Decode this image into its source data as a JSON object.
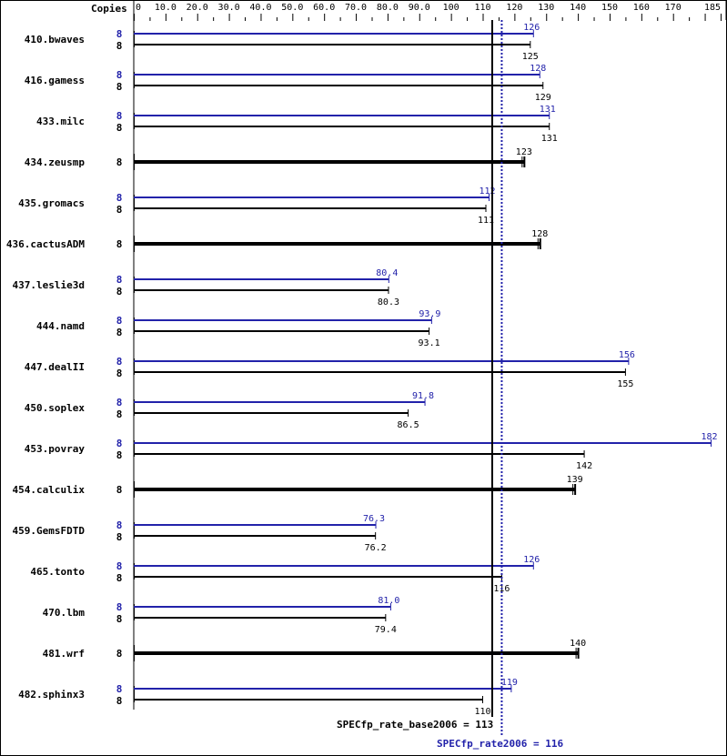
{
  "chart_data": {
    "type": "bar",
    "orientation": "horizontal",
    "xaxis_label": "Copies",
    "xlim": [
      0,
      185
    ],
    "tick_labels": [
      "0",
      "10.0",
      "20.0",
      "30.0",
      "40.0",
      "50.0",
      "60.0",
      "70.0",
      "80.0",
      "90.0",
      "100",
      "110",
      "120",
      "130",
      "140",
      "150",
      "160",
      "170",
      "185"
    ],
    "tick_values": [
      0,
      10,
      20,
      30,
      40,
      50,
      60,
      70,
      80,
      90,
      100,
      110,
      120,
      130,
      140,
      150,
      160,
      170,
      185
    ],
    "colors": {
      "peak": "#2222aa",
      "base": "#000000"
    },
    "rows": [
      {
        "name": "410.bwaves",
        "peak_copies": "8",
        "base_copies": "8",
        "peak": 126,
        "peak_label": "126",
        "base": 125,
        "base_label": "125"
      },
      {
        "name": "416.gamess",
        "peak_copies": "8",
        "base_copies": "8",
        "peak": 128,
        "peak_label": "128",
        "base": 129,
        "base_label": "129"
      },
      {
        "name": "433.milc",
        "peak_copies": "8",
        "base_copies": "8",
        "peak": 131,
        "peak_label": "131",
        "base": 131,
        "base_label": "131"
      },
      {
        "name": "434.zeusmp",
        "base_copies": "8",
        "base": 123,
        "base_label": "123"
      },
      {
        "name": "435.gromacs",
        "peak_copies": "8",
        "base_copies": "8",
        "peak": 112,
        "peak_label": "112",
        "base": 111,
        "base_label": "111"
      },
      {
        "name": "436.cactusADM",
        "base_copies": "8",
        "base": 128,
        "base_label": "128"
      },
      {
        "name": "437.leslie3d",
        "peak_copies": "8",
        "base_copies": "8",
        "peak": 80.4,
        "peak_label": "80.4",
        "base": 80.3,
        "base_label": "80.3"
      },
      {
        "name": "444.namd",
        "peak_copies": "8",
        "base_copies": "8",
        "peak": 93.9,
        "peak_label": "93.9",
        "base": 93.1,
        "base_label": "93.1"
      },
      {
        "name": "447.dealII",
        "peak_copies": "8",
        "base_copies": "8",
        "peak": 156,
        "peak_label": "156",
        "base": 155,
        "base_label": "155"
      },
      {
        "name": "450.soplex",
        "peak_copies": "8",
        "base_copies": "8",
        "peak": 91.8,
        "peak_label": "91.8",
        "base": 86.5,
        "base_label": "86.5"
      },
      {
        "name": "453.povray",
        "peak_copies": "8",
        "base_copies": "8",
        "peak": 182,
        "peak_label": "182",
        "base": 142,
        "base_label": "142"
      },
      {
        "name": "454.calculix",
        "base_copies": "8",
        "base": 139,
        "base_label": "139"
      },
      {
        "name": "459.GemsFDTD",
        "peak_copies": "8",
        "base_copies": "8",
        "peak": 76.3,
        "peak_label": "76.3",
        "base": 76.2,
        "base_label": "76.2"
      },
      {
        "name": "465.tonto",
        "peak_copies": "8",
        "base_copies": "8",
        "peak": 126,
        "peak_label": "126",
        "base": 116,
        "base_label": "116"
      },
      {
        "name": "470.lbm",
        "peak_copies": "8",
        "base_copies": "8",
        "peak": 81.0,
        "peak_label": "81.0",
        "base": 79.4,
        "base_label": "79.4"
      },
      {
        "name": "481.wrf",
        "base_copies": "8",
        "base": 140,
        "base_label": "140"
      },
      {
        "name": "482.sphinx3",
        "peak_copies": "8",
        "base_copies": "8",
        "peak": 119,
        "peak_label": "119",
        "base": 110,
        "base_label": "110"
      }
    ],
    "base_summary": {
      "label": "SPECfp_rate_base2006 = 113",
      "value": 113
    },
    "peak_summary": {
      "label": "SPECfp_rate2006 = 116",
      "value": 116
    }
  }
}
